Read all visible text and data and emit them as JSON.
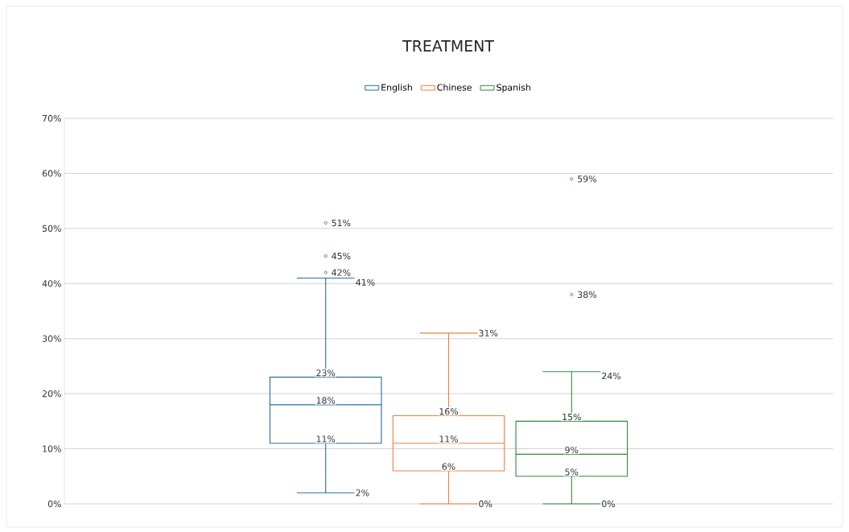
{
  "chart_data": {
    "type": "box",
    "title": "TREATMENT",
    "categories": [
      null
    ],
    "series": [
      {
        "name": "English",
        "color": "#2a6f97",
        "boxes": [
          {
            "low": 2,
            "q1": 11,
            "median": 18,
            "q3": 23,
            "high": 41,
            "outliers": [
              42,
              45,
              51
            ]
          }
        ]
      },
      {
        "name": "Chinese",
        "color": "#f07f3c",
        "boxes": [
          {
            "low": 0,
            "q1": 6,
            "median": 11,
            "q3": 16,
            "high": 31
          }
        ]
      },
      {
        "name": "Spanish",
        "color": "#2e8b3a",
        "boxes": [
          {
            "low": 0,
            "q1": 5,
            "median": 9,
            "q3": 15,
            "high": 24,
            "outliers": [
              38,
              59
            ]
          }
        ]
      }
    ],
    "annotations": [
      "2%",
      "11%",
      "18%",
      "23%",
      "41%",
      "42%",
      "45%",
      "51%",
      "0%",
      "6%",
      "11%",
      "16%",
      "31%",
      "0%",
      "5%",
      "9%",
      "15%",
      "24%",
      "38%",
      "59%"
    ],
    "ylim": [
      0,
      70
    ],
    "yticks": [
      {
        "value": 0,
        "label": "0%"
      },
      {
        "value": 10,
        "label": "10%"
      },
      {
        "value": 20,
        "label": "20%"
      },
      {
        "value": 30,
        "label": "30%"
      },
      {
        "value": 40,
        "label": "40%"
      },
      {
        "value": 50,
        "label": "50%"
      },
      {
        "value": 60,
        "label": "60%"
      },
      {
        "value": 70,
        "label": "70%"
      }
    ],
    "grid": "y",
    "legend": "top",
    "marker": "circle"
  }
}
